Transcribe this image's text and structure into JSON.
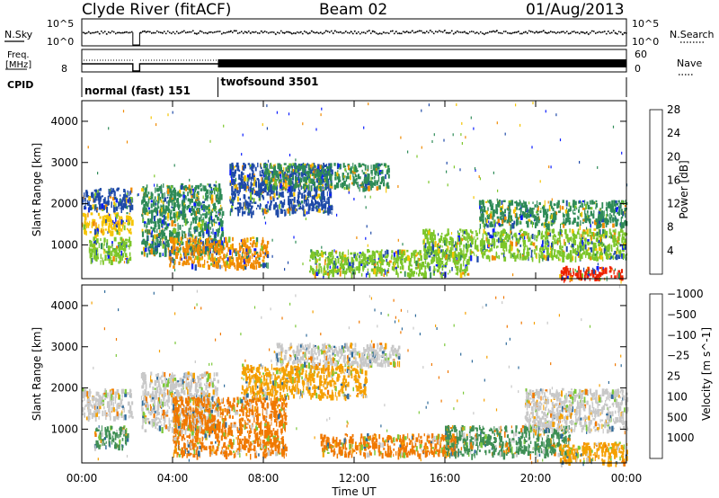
{
  "header": {
    "station": "Clyde River (fitACF)",
    "beam": "Beam 02",
    "date": "01/Aug/2013"
  },
  "panels": {
    "nsky_label": "N.Sky",
    "nsearch_label": "N.Search",
    "freq_label_1": "Freq.",
    "freq_label_2": "[MHz]",
    "nave_label": "Nave",
    "cpid_label": "CPID",
    "nsky_ticks": [
      "10^5",
      "10^0"
    ],
    "nsearch_ticks": [
      "10^5",
      "10^0"
    ],
    "freq_ticks": [
      "8"
    ],
    "nave_ticks": [
      "60",
      "0"
    ],
    "cpid_segments": [
      {
        "name": "normal (fast) 151",
        "start_hour": 0
      },
      {
        "name": "twofsound 3501",
        "start_hour": 6
      }
    ]
  },
  "chart_data": [
    {
      "type": "heatmap",
      "title": "",
      "xlabel": "",
      "ylabel": "Slant Range [km]",
      "xlim": [
        0,
        24
      ],
      "ylim": [
        180,
        4500
      ],
      "x_ticks": [
        "00:00",
        "04:00",
        "08:00",
        "12:00",
        "16:00",
        "20:00",
        "00:00"
      ],
      "y_ticks": [
        1000,
        2000,
        3000,
        4000
      ],
      "colorbar": {
        "label": "Power [dB]",
        "ticks": [
          "4",
          "8",
          "12",
          "16",
          "20",
          "24",
          "28"
        ],
        "colors": [
          "#0a1cff",
          "#1f4aa8",
          "#2e8b57",
          "#7cc62a",
          "#f5c400",
          "#f08a00",
          "#ee2200"
        ]
      },
      "data_gap_hours": [
        [
          2.25,
          2.55
        ]
      ],
      "echo_regions": [
        {
          "t0": 0.0,
          "t1": 2.2,
          "r0": 1300,
          "r1": 1800,
          "level": "20"
        },
        {
          "t0": 0.3,
          "t1": 2.1,
          "r0": 600,
          "r1": 1200,
          "level": "16"
        },
        {
          "t0": 0.0,
          "t1": 2.2,
          "r0": 1900,
          "r1": 2400,
          "level": "8"
        },
        {
          "t0": 2.6,
          "t1": 6.2,
          "r0": 800,
          "r1": 2500,
          "level": "12"
        },
        {
          "t0": 3.8,
          "t1": 8.2,
          "r0": 500,
          "r1": 1200,
          "level": "24"
        },
        {
          "t0": 6.5,
          "t1": 11.0,
          "r0": 1800,
          "r1": 3000,
          "level": "8"
        },
        {
          "t0": 8.0,
          "t1": 13.5,
          "r0": 2400,
          "r1": 3000,
          "level": "12"
        },
        {
          "t0": 10.0,
          "t1": 17.0,
          "r0": 300,
          "r1": 900,
          "level": "16"
        },
        {
          "t0": 15.0,
          "t1": 24.0,
          "r0": 700,
          "r1": 1400,
          "level": "16"
        },
        {
          "t0": 17.5,
          "t1": 24.0,
          "r0": 1500,
          "r1": 2100,
          "level": "12"
        },
        {
          "t0": 21.0,
          "t1": 23.8,
          "r0": 200,
          "r1": 500,
          "level": "28"
        }
      ]
    },
    {
      "type": "heatmap",
      "title": "",
      "xlabel": "Time UT",
      "ylabel": "Slant Range [km]",
      "xlim": [
        0,
        24
      ],
      "ylim": [
        180,
        4500
      ],
      "x_ticks": [
        "00:00",
        "04:00",
        "08:00",
        "12:00",
        "16:00",
        "20:00",
        "00:00"
      ],
      "y_ticks": [
        1000,
        2000,
        3000,
        4000
      ],
      "colorbar": {
        "label": "Velocity [m s^-1]",
        "ticks": [
          "1000",
          "500",
          "100",
          "25",
          "−25",
          "−100",
          "−500",
          "−1000"
        ],
        "colors": [
          "#1f3fb0",
          "#2e6a9a",
          "#3f8f55",
          "#7cc83a",
          "#c8c8c8",
          "#f5a000",
          "#f07800",
          "#ee1100"
        ]
      },
      "ground_scatter_color": "#c8c8c8",
      "data_gap_hours": [
        [
          2.25,
          2.55
        ]
      ],
      "echo_regions": [
        {
          "t0": 0.0,
          "t1": 2.2,
          "r0": 1300,
          "r1": 2000,
          "level": "gs"
        },
        {
          "t0": 0.5,
          "t1": 2.0,
          "r0": 600,
          "r1": 1100,
          "level": "100"
        },
        {
          "t0": 2.6,
          "t1": 6.0,
          "r0": 1000,
          "r1": 2400,
          "level": "gs"
        },
        {
          "t0": 4.0,
          "t1": 9.0,
          "r0": 400,
          "r1": 1800,
          "level": "-500"
        },
        {
          "t0": 7.0,
          "t1": 12.5,
          "r0": 1800,
          "r1": 2600,
          "level": "-100"
        },
        {
          "t0": 8.5,
          "t1": 14.0,
          "r0": 2600,
          "r1": 3100,
          "level": "gs"
        },
        {
          "t0": 10.5,
          "t1": 16.5,
          "r0": 400,
          "r1": 900,
          "level": "-500"
        },
        {
          "t0": 16.0,
          "t1": 21.5,
          "r0": 400,
          "r1": 1100,
          "level": "100"
        },
        {
          "t0": 19.5,
          "t1": 24.0,
          "r0": 1000,
          "r1": 2000,
          "level": "gs"
        },
        {
          "t0": 21.0,
          "t1": 24.0,
          "r0": 200,
          "r1": 700,
          "level": "-100"
        }
      ]
    }
  ]
}
